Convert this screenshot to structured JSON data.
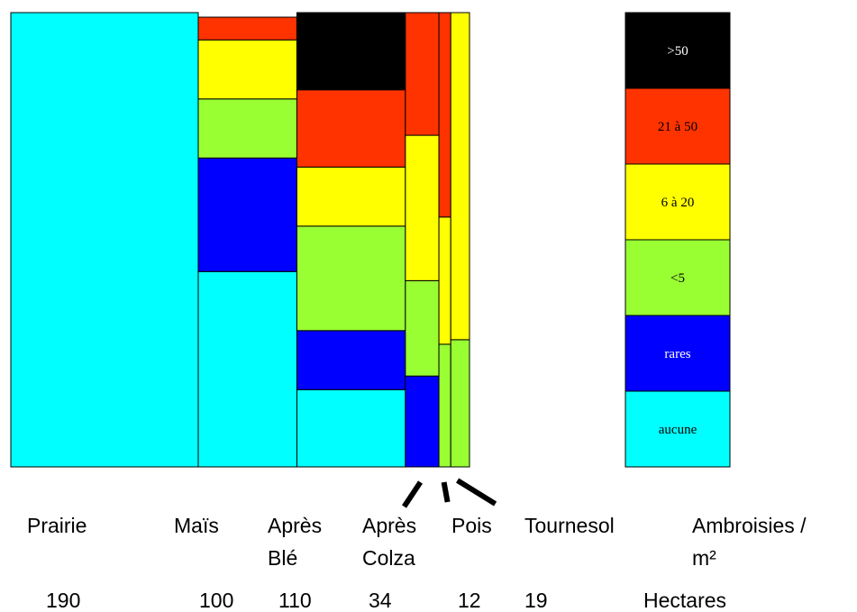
{
  "chart_data": {
    "type": "mosaic",
    "categories": [
      {
        "label_lines": [
          "Prairie"
        ],
        "hectares": 190,
        "hectares_label": "190"
      },
      {
        "label_lines": [
          "Maïs"
        ],
        "hectares": 100,
        "hectares_label": "100"
      },
      {
        "label_lines": [
          "Après",
          "Blé"
        ],
        "hectares": 110,
        "hectares_label": "110"
      },
      {
        "label_lines": [
          "Après",
          "Colza"
        ],
        "hectares": 34,
        "hectares_label": "34"
      },
      {
        "label_lines": [
          "Pois"
        ],
        "hectares": 12,
        "hectares_label": "12"
      },
      {
        "label_lines": [
          "Tournesol"
        ],
        "hectares": 19,
        "hectares_label": "19"
      }
    ],
    "classes": [
      {
        "name": "aucune",
        "color": "#00FFFF",
        "text_color": "#000000"
      },
      {
        "name": "rares",
        "color": "#0000FF",
        "text_color": "#FFFFFF"
      },
      {
        "name": "<5",
        "color": "#99FF33",
        "text_color": "#000000"
      },
      {
        "name": "6 à 20",
        "color": "#FFFF00",
        "text_color": "#000000"
      },
      {
        "name": "21 à 50",
        "color": "#FF3300",
        "text_color": "#000000"
      },
      {
        "name": ">50",
        "color": "#000000",
        "text_color": "#FFFFFF"
      }
    ],
    "proportions": [
      [
        1.0,
        0.0,
        0.0,
        0.0,
        0.0,
        0.0
      ],
      [
        0.43,
        0.25,
        0.13,
        0.13,
        0.05,
        0.0
      ],
      [
        0.17,
        0.13,
        0.23,
        0.13,
        0.17,
        0.17
      ],
      [
        0.0,
        0.2,
        0.21,
        0.32,
        0.27,
        0.0
      ],
      [
        0.0,
        0.0,
        0.27,
        0.28,
        0.45,
        0.0
      ],
      [
        0.0,
        0.0,
        0.28,
        0.72,
        0.0,
        0.0
      ]
    ],
    "legend_title_lines": [
      "Ambroisies /",
      "m²"
    ],
    "hectares_title": "Hectares"
  }
}
